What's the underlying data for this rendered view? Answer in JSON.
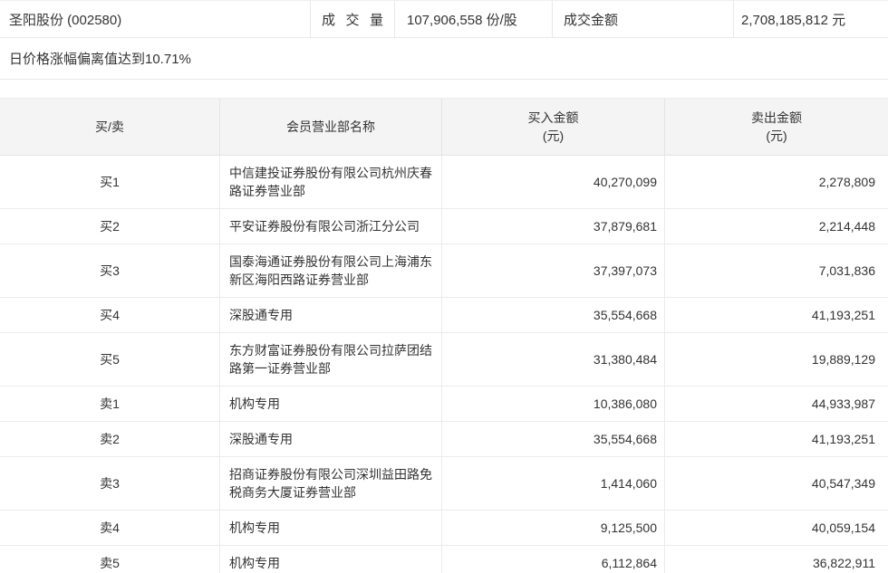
{
  "summary": {
    "stock_title": "圣阳股份 (002580)",
    "volume_label": "成交量",
    "volume_value": "107,906,558 份/股",
    "turnover_label": "成交金额",
    "turnover_value": "2,708,185,812 元"
  },
  "notice": {
    "text": "日价格涨幅偏离值达到10.71%"
  },
  "table": {
    "columns": [
      {
        "label": "买/卖"
      },
      {
        "label": "会员营业部名称"
      },
      {
        "label": "买入金额",
        "sub": "(元)"
      },
      {
        "label": "卖出金额",
        "sub": "(元)"
      }
    ],
    "rows": [
      {
        "side": "买1",
        "branch": "中信建投证券股份有限公司杭州庆春路证券营业部",
        "buy": "40,270,099",
        "sell": "2,278,809"
      },
      {
        "side": "买2",
        "branch": "平安证券股份有限公司浙江分公司",
        "buy": "37,879,681",
        "sell": "2,214,448"
      },
      {
        "side": "买3",
        "branch": "国泰海通证券股份有限公司上海浦东新区海阳西路证券营业部",
        "buy": "37,397,073",
        "sell": "7,031,836"
      },
      {
        "side": "买4",
        "branch": "深股通专用",
        "buy": "35,554,668",
        "sell": "41,193,251"
      },
      {
        "side": "买5",
        "branch": "东方财富证券股份有限公司拉萨团结路第一证券营业部",
        "buy": "31,380,484",
        "sell": "19,889,129"
      },
      {
        "side": "卖1",
        "branch": "机构专用",
        "buy": "10,386,080",
        "sell": "44,933,987"
      },
      {
        "side": "卖2",
        "branch": "深股通专用",
        "buy": "35,554,668",
        "sell": "41,193,251"
      },
      {
        "side": "卖3",
        "branch": "招商证券股份有限公司深圳益田路免税商务大厦证券营业部",
        "buy": "1,414,060",
        "sell": "40,547,349"
      },
      {
        "side": "卖4",
        "branch": "机构专用",
        "buy": "9,125,500",
        "sell": "40,059,154"
      },
      {
        "side": "卖5",
        "branch": "机构专用",
        "buy": "6,112,864",
        "sell": "36,822,911"
      }
    ]
  },
  "colors": {
    "header_bg": "#f4f4f4",
    "border": "#e8e8e8",
    "text": "#333333"
  }
}
